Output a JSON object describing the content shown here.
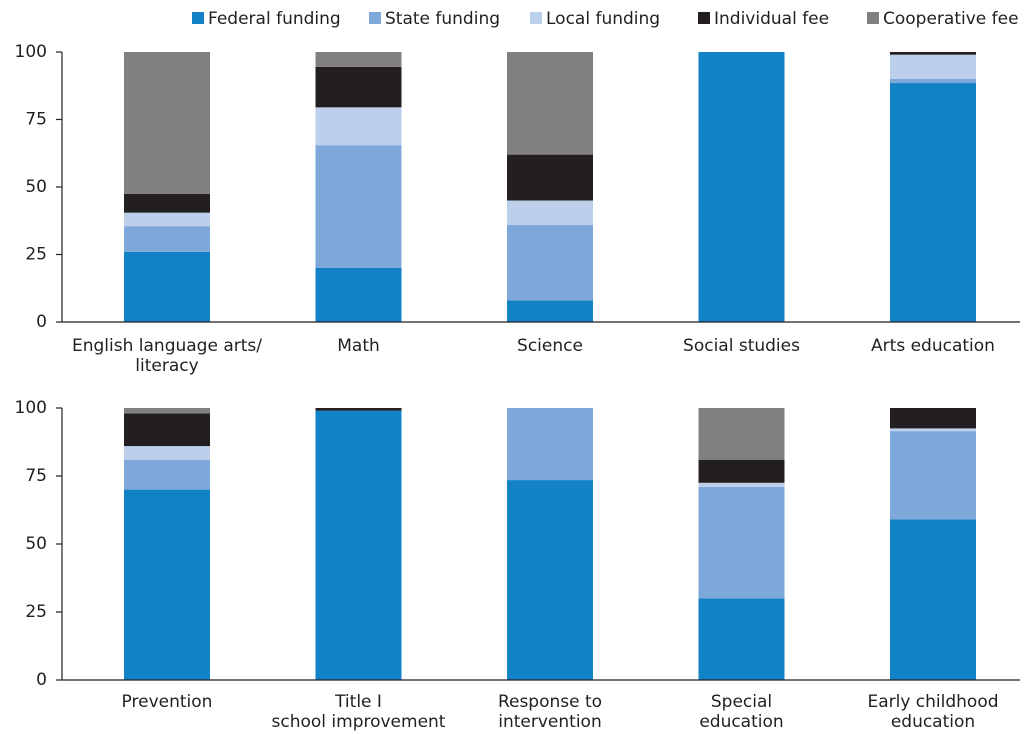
{
  "chart_data": [
    {
      "type": "stacked_bar",
      "categories": [
        [
          "English language arts/",
          "literacy"
        ],
        [
          "Math"
        ],
        [
          "Science"
        ],
        [
          "Social studies"
        ],
        [
          "Arts education"
        ]
      ],
      "series": [
        {
          "name": "Federal funding",
          "color": "#1282c6",
          "values": [
            26,
            20,
            8,
            100,
            88.5
          ]
        },
        {
          "name": "State funding",
          "color": "#7fa8da",
          "values": [
            9.5,
            45.5,
            28,
            0,
            1.5
          ]
        },
        {
          "name": "Local funding",
          "color": "#bccfeb",
          "values": [
            5,
            14,
            9,
            0,
            9
          ]
        },
        {
          "name": "Individual fee",
          "color": "#231f20",
          "values": [
            7,
            15,
            17,
            0,
            1
          ]
        },
        {
          "name": "Cooperative fee",
          "color": "#808080",
          "values": [
            52.5,
            5.5,
            38,
            0,
            0
          ]
        }
      ],
      "ylim": [
        0,
        100
      ],
      "yticks": [
        0,
        25,
        50,
        75,
        100
      ]
    },
    {
      "type": "stacked_bar",
      "categories": [
        [
          "Prevention"
        ],
        [
          "Title I",
          "school improvement"
        ],
        [
          "Response to",
          "intervention"
        ],
        [
          "Special",
          "education"
        ],
        [
          "Early childhood",
          "education"
        ]
      ],
      "series": [
        {
          "values": [
            70,
            99,
            73.5,
            30,
            59
          ]
        },
        {
          "values": [
            11,
            0,
            26.5,
            41,
            32.5
          ]
        },
        {
          "values": [
            5,
            0,
            0,
            1.5,
            1
          ]
        },
        {
          "values": [
            12,
            1,
            0,
            8.5,
            7.5
          ]
        },
        {
          "values": [
            2,
            0,
            0,
            19,
            0
          ]
        }
      ],
      "ylim": [
        0,
        100
      ],
      "yticks": [
        0,
        25,
        50,
        75,
        100
      ]
    }
  ]
}
